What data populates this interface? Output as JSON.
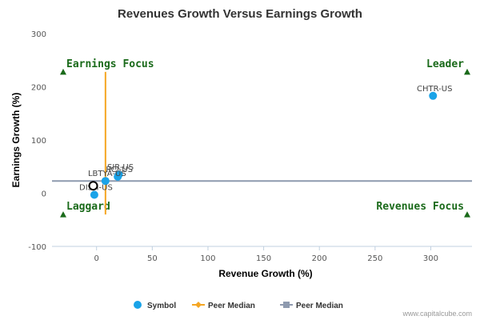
{
  "chart_data": {
    "type": "scatter",
    "title": "Revenues Growth Versus Earnings Growth",
    "xlabel": "Revenue Growth (%)",
    "ylabel": "Earnings Growth (%)",
    "xlim": [
      -40,
      337
    ],
    "ylim": [
      -100,
      300
    ],
    "xticks": [
      0,
      50,
      100,
      150,
      200,
      250,
      300
    ],
    "yticks": [
      -100,
      0,
      100,
      200,
      300
    ],
    "grid": false,
    "legend_position": "bottom",
    "points": [
      {
        "label": "CHTR-US",
        "x": 302,
        "y": 183
      },
      {
        "label": "SIR-US",
        "x": 20,
        "y": 35
      },
      {
        "label": "RCI-US",
        "x": 19,
        "y": 31
      },
      {
        "label": "LBTYA-US",
        "x": 8,
        "y": 23
      },
      {
        "label": "DISH-US",
        "x": -2,
        "y": -3
      },
      {
        "label": "",
        "x": -3,
        "y": 14,
        "highlight": true
      }
    ],
    "peer_median": {
      "x": 8,
      "y": 23
    },
    "quadrants": {
      "top_left": "Earnings Focus",
      "top_right": "Leader",
      "bottom_left": "Laggard",
      "bottom_right": "Revenues Focus"
    },
    "legend": [
      {
        "name": "Symbol",
        "kind": "dot"
      },
      {
        "name": "Peer Median",
        "kind": "line-diamond"
      },
      {
        "name": "Peer Median",
        "kind": "line-square"
      }
    ],
    "colors": {
      "point": "#1aa3e8",
      "median_vertical": "#f5a623",
      "median_horizontal": "#8e9aaf",
      "quadrant": "#1a6a1a"
    }
  },
  "credit": "www.capitalcube.com"
}
